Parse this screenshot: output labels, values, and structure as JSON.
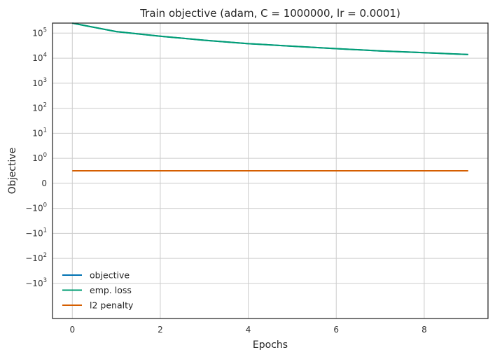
{
  "chart_data": {
    "type": "line",
    "title": "Train objective (adam, C = 1000000, lr = 0.0001)",
    "xlabel": "Epochs",
    "ylabel": "Objective",
    "yscale": "symlog",
    "xlim": [
      -0.45,
      9.45
    ],
    "grid": true,
    "legend": "lower-left",
    "x_ticks": [
      {
        "value": 0,
        "label": "0"
      },
      {
        "value": 2,
        "label": "2"
      },
      {
        "value": 4,
        "label": "4"
      },
      {
        "value": 6,
        "label": "6"
      },
      {
        "value": 8,
        "label": "8"
      }
    ],
    "y_ticks": [
      {
        "value": 100000,
        "base": "10",
        "exp": "5",
        "sign": ""
      },
      {
        "value": 10000,
        "base": "10",
        "exp": "4",
        "sign": ""
      },
      {
        "value": 1000,
        "base": "10",
        "exp": "3",
        "sign": ""
      },
      {
        "value": 100,
        "base": "10",
        "exp": "2",
        "sign": ""
      },
      {
        "value": 10,
        "base": "10",
        "exp": "1",
        "sign": ""
      },
      {
        "value": 1,
        "base": "10",
        "exp": "0",
        "sign": ""
      },
      {
        "value": 0,
        "base": "0",
        "exp": "",
        "sign": ""
      },
      {
        "value": -1,
        "base": "10",
        "exp": "0",
        "sign": "−"
      },
      {
        "value": -10,
        "base": "10",
        "exp": "1",
        "sign": "−"
      },
      {
        "value": -100,
        "base": "10",
        "exp": "2",
        "sign": "−"
      },
      {
        "value": -1000,
        "base": "10",
        "exp": "3",
        "sign": "−"
      }
    ],
    "x": [
      0,
      1,
      2,
      3,
      4,
      5,
      6,
      7,
      8,
      9
    ],
    "series": [
      {
        "name": "objective",
        "color": "#0072b2",
        "values": [
          250000,
          115000,
          75000,
          52000,
          38000,
          30000,
          24000,
          19500,
          16500,
          14000
        ]
      },
      {
        "name": "emp. loss",
        "color": "#009e73",
        "values": [
          250000,
          115000,
          75000,
          52000,
          38000,
          30000,
          24000,
          19500,
          16500,
          14000
        ]
      },
      {
        "name": "l2 penalty",
        "color": "#d55e00",
        "values": [
          0.5,
          0.5,
          0.5,
          0.5,
          0.5,
          0.5,
          0.5,
          0.5,
          0.5,
          0.5
        ]
      }
    ]
  }
}
